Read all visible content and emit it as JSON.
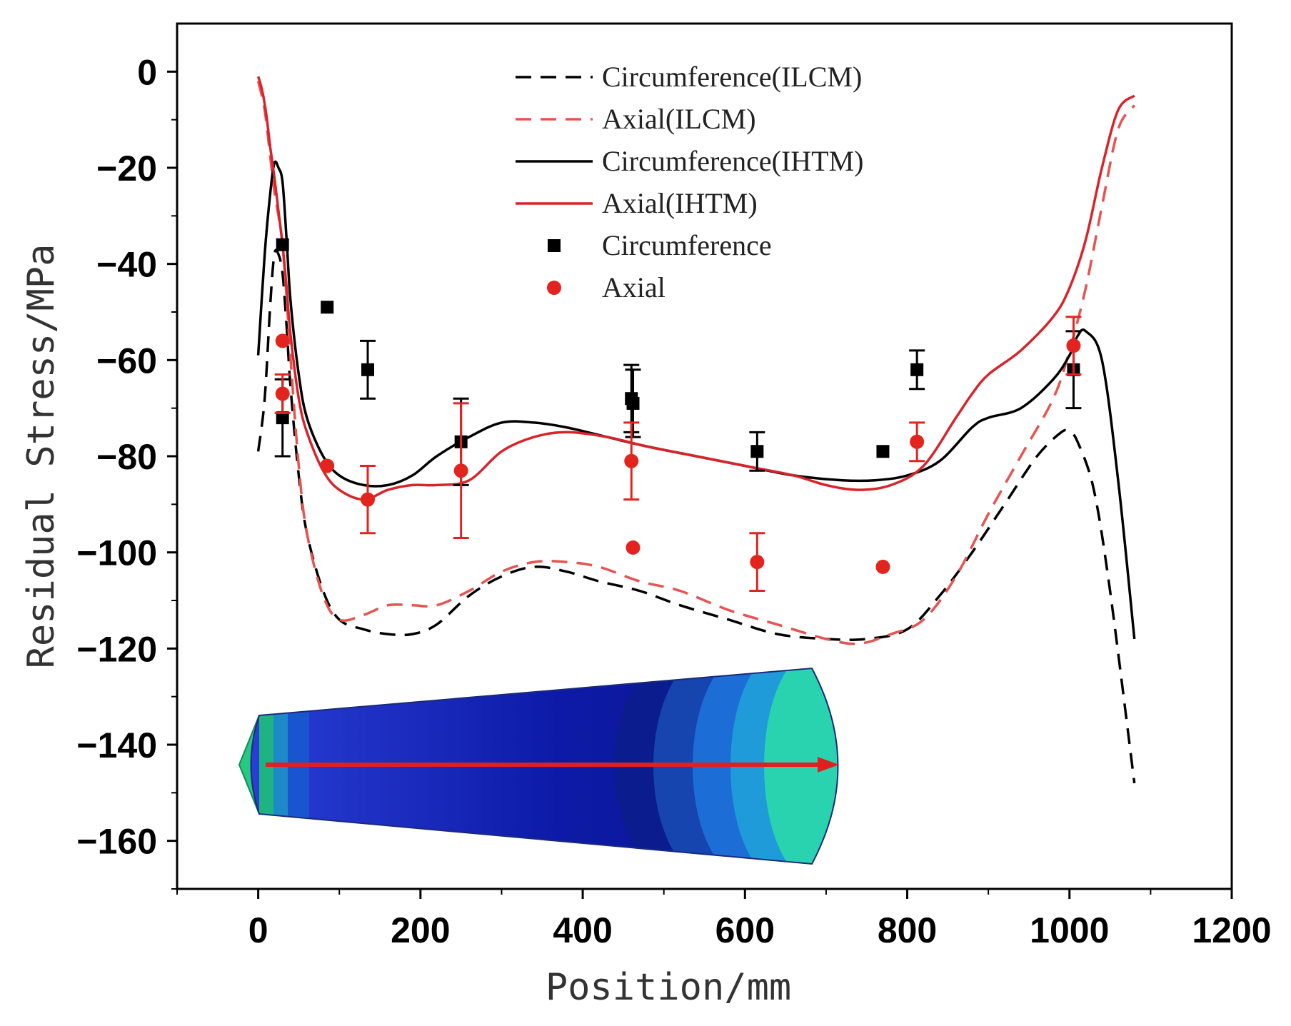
{
  "chart_data": {
    "type": "line",
    "title": "",
    "xlabel": "Position/mm",
    "ylabel": "Residual Stress/MPa",
    "xlim": [
      -100,
      1200
    ],
    "ylim": [
      -170,
      10
    ],
    "xticks": [
      0,
      200,
      400,
      600,
      800,
      1000,
      1200
    ],
    "yticks": [
      0,
      -20,
      -40,
      -60,
      -80,
      -100,
      -120,
      -140,
      -160
    ],
    "xtick_labels": [
      "0",
      "200",
      "400",
      "600",
      "800",
      "1000",
      "1200"
    ],
    "ytick_labels": [
      "0",
      "−20",
      "−40",
      "−60",
      "−80",
      "−100",
      "−120",
      "−140",
      "−160"
    ],
    "legend_position": "top-center",
    "series": [
      {
        "name": "Circumference(ILCM)",
        "style": "dashed",
        "color": "#000000",
        "x": [
          0,
          8,
          15,
          20,
          25,
          30,
          35,
          40,
          50,
          60,
          80,
          100,
          130,
          160,
          190,
          220,
          260,
          300,
          340,
          380,
          420,
          470,
          520,
          580,
          640,
          700,
          750,
          800,
          840,
          880,
          920,
          960,
          990,
          1000,
          1010,
          1030,
          1050,
          1080
        ],
        "y": [
          -79,
          -68,
          -48,
          -38,
          -38,
          -42,
          -53,
          -66,
          -84,
          -96,
          -108,
          -114,
          -116,
          -117,
          -117,
          -115,
          -109,
          -105,
          -103,
          -104,
          -106,
          -108,
          -111,
          -114,
          -117,
          -118,
          -118,
          -116,
          -109,
          -100,
          -90,
          -80,
          -75,
          -75,
          -77,
          -87,
          -108,
          -148
        ]
      },
      {
        "name": "Axial(ILCM)",
        "style": "dashed",
        "color": "#e8524f",
        "x": [
          0,
          8,
          15,
          20,
          25,
          30,
          35,
          40,
          50,
          60,
          80,
          100,
          130,
          160,
          190,
          220,
          260,
          300,
          340,
          380,
          420,
          470,
          520,
          580,
          640,
          700,
          740,
          780,
          820,
          860,
          900,
          940,
          980,
          1000,
          1020,
          1040,
          1060,
          1080
        ],
        "y": [
          -2,
          -8,
          -18,
          -25,
          -30,
          -36,
          -47,
          -60,
          -82,
          -96,
          -109,
          -114,
          -113,
          -111,
          -111,
          -111,
          -108,
          -104,
          -102,
          -102,
          -103,
          -106,
          -108,
          -112,
          -115,
          -118,
          -119,
          -117,
          -114,
          -105,
          -92,
          -80,
          -68,
          -58,
          -45,
          -28,
          -12,
          -7
        ]
      },
      {
        "name": "Circumference(IHTM)",
        "style": "solid",
        "color": "#000000",
        "x": [
          0,
          8,
          15,
          20,
          25,
          30,
          35,
          40,
          50,
          60,
          80,
          100,
          130,
          160,
          190,
          220,
          260,
          300,
          340,
          380,
          430,
          480,
          540,
          600,
          660,
          720,
          760,
          800,
          840,
          880,
          900,
          940,
          980,
          1000,
          1010,
          1020,
          1040,
          1060,
          1080
        ],
        "y": [
          -59,
          -38,
          -25,
          -19,
          -20,
          -23,
          -35,
          -48,
          -63,
          -72,
          -80,
          -84,
          -86,
          -86,
          -84,
          -80,
          -76,
          -73,
          -73,
          -74,
          -76,
          -78,
          -80,
          -82,
          -84,
          -85,
          -85,
          -84,
          -81,
          -74,
          -72,
          -70,
          -64,
          -59,
          -55,
          -54,
          -60,
          -85,
          -118
        ]
      },
      {
        "name": "Axial(IHTM)",
        "style": "solid",
        "color": "#d9232a",
        "x": [
          0,
          5,
          10,
          15,
          20,
          25,
          30,
          35,
          40,
          50,
          60,
          80,
          100,
          130,
          160,
          190,
          220,
          260,
          300,
          340,
          380,
          430,
          480,
          540,
          600,
          660,
          700,
          740,
          780,
          820,
          860,
          880,
          900,
          940,
          980,
          1000,
          1020,
          1040,
          1060,
          1080
        ],
        "y": [
          -1,
          -4,
          -9,
          -16,
          -22,
          -29,
          -36,
          -45,
          -55,
          -68,
          -75,
          -83,
          -87,
          -89,
          -87,
          -86,
          -86,
          -85,
          -79,
          -76,
          -75,
          -76,
          -78,
          -80,
          -82,
          -84,
          -86,
          -87,
          -86,
          -82,
          -72,
          -67,
          -63,
          -58,
          -51,
          -45,
          -35,
          -20,
          -8,
          -5
        ]
      },
      {
        "name": "Circumference",
        "style": "markers",
        "marker": "square",
        "color": "#000000",
        "x": [
          30,
          30,
          85,
          135,
          250,
          460,
          462,
          615,
          770,
          812,
          1005
        ],
        "y": [
          -36,
          -72,
          -49,
          -62,
          -77,
          -68,
          -69,
          -79,
          -79,
          -62,
          -62
        ],
        "err": [
          0,
          8,
          0,
          6,
          9,
          7,
          7,
          4,
          0,
          4,
          8
        ]
      },
      {
        "name": "Axial",
        "style": "markers",
        "marker": "circle",
        "color": "#e3241e",
        "x": [
          30,
          30,
          85,
          135,
          250,
          460,
          462,
          615,
          770,
          812,
          1005
        ],
        "y": [
          -56,
          -67,
          -82,
          -89,
          -83,
          -81,
          -99,
          -102,
          -103,
          -77,
          -57
        ],
        "err": [
          0,
          4,
          0,
          7,
          14,
          8,
          0,
          6,
          0,
          4,
          6
        ]
      }
    ]
  }
}
